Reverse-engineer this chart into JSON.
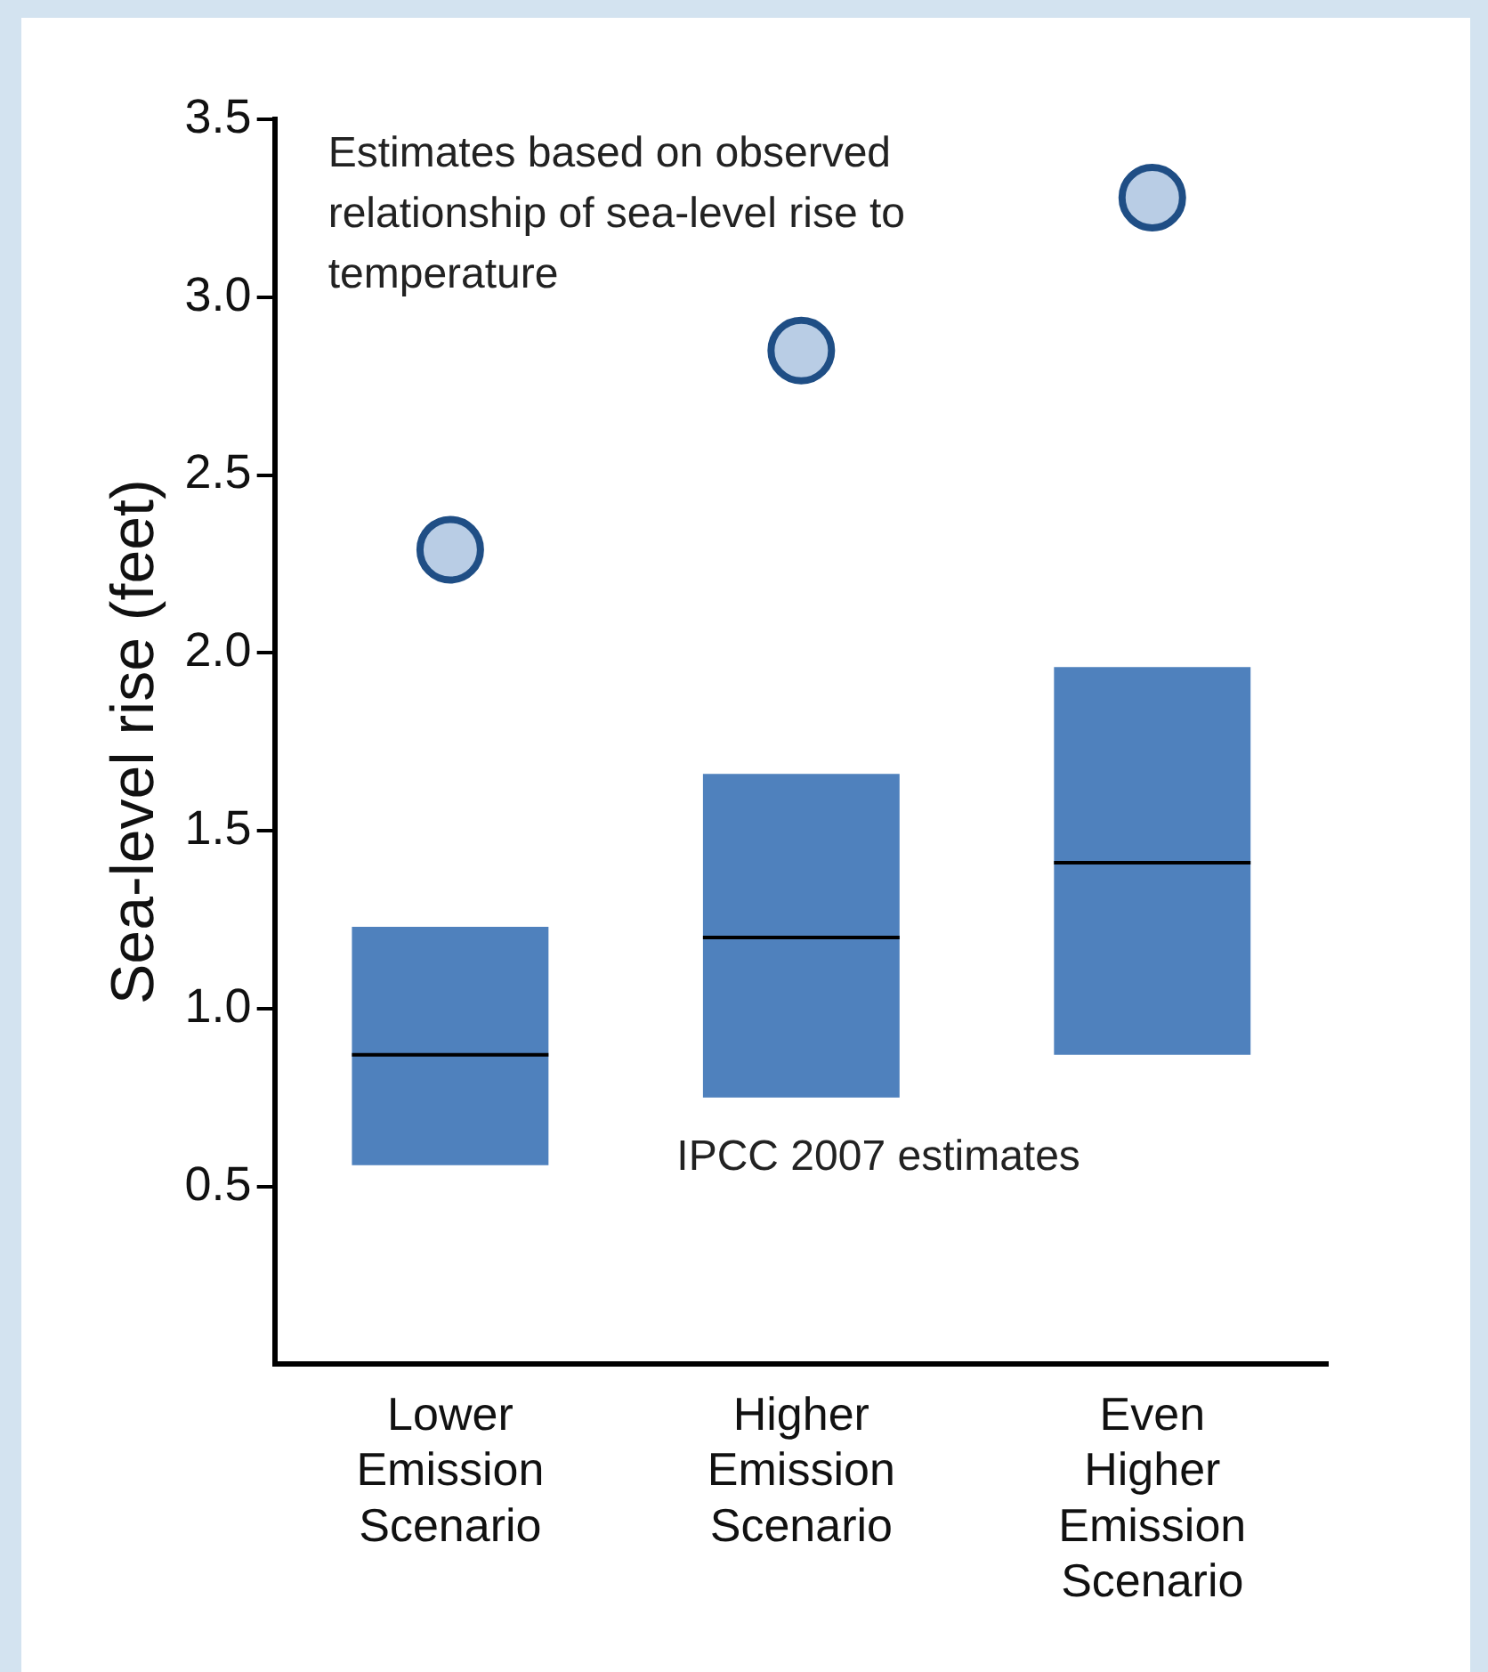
{
  "chart_data": {
    "type": "box",
    "ylabel": "Sea-level rise (feet)",
    "categories": [
      "Lower Emission Scenario",
      "Higher Emission Scenario",
      "Even Higher Emission Scenario"
    ],
    "ylim": [
      0,
      3.5
    ],
    "yticks": [
      0.5,
      {
        "value": 1,
        "label": "1.0"
      },
      1.5,
      {
        "value": 2,
        "label": "2.0"
      },
      2.5,
      {
        "value": 3,
        "label": "3.0"
      },
      3.5
    ],
    "grid": false,
    "legend": false,
    "series": [
      {
        "color": "#4f81bd",
        "boxes": [
          {
            "low": 0.56,
            "q1": 0.56,
            "median": 0.87,
            "q3": 1.23,
            "high": 1.23
          },
          {
            "low": 0.75,
            "q1": 0.75,
            "median": 1.2,
            "q3": 1.66,
            "high": 1.66
          },
          {
            "low": 0.87,
            "q1": 0.87,
            "median": 1.41,
            "q3": 1.96,
            "high": 1.96
          }
        ]
      },
      {
        "type": "scatter",
        "color": "#b9cde5",
        "marker": "circle",
        "x": [
          "Lower Emission Scenario",
          "Higher Emission Scenario",
          "Even Higher Emission Scenario"
        ],
        "values": [
          2.29,
          2.85,
          3.28
        ]
      }
    ],
    "annotations": [
      "Estimates based on observed relationship of sea-level rise to temperature",
      "IPCC 2007 estimates"
    ]
  }
}
